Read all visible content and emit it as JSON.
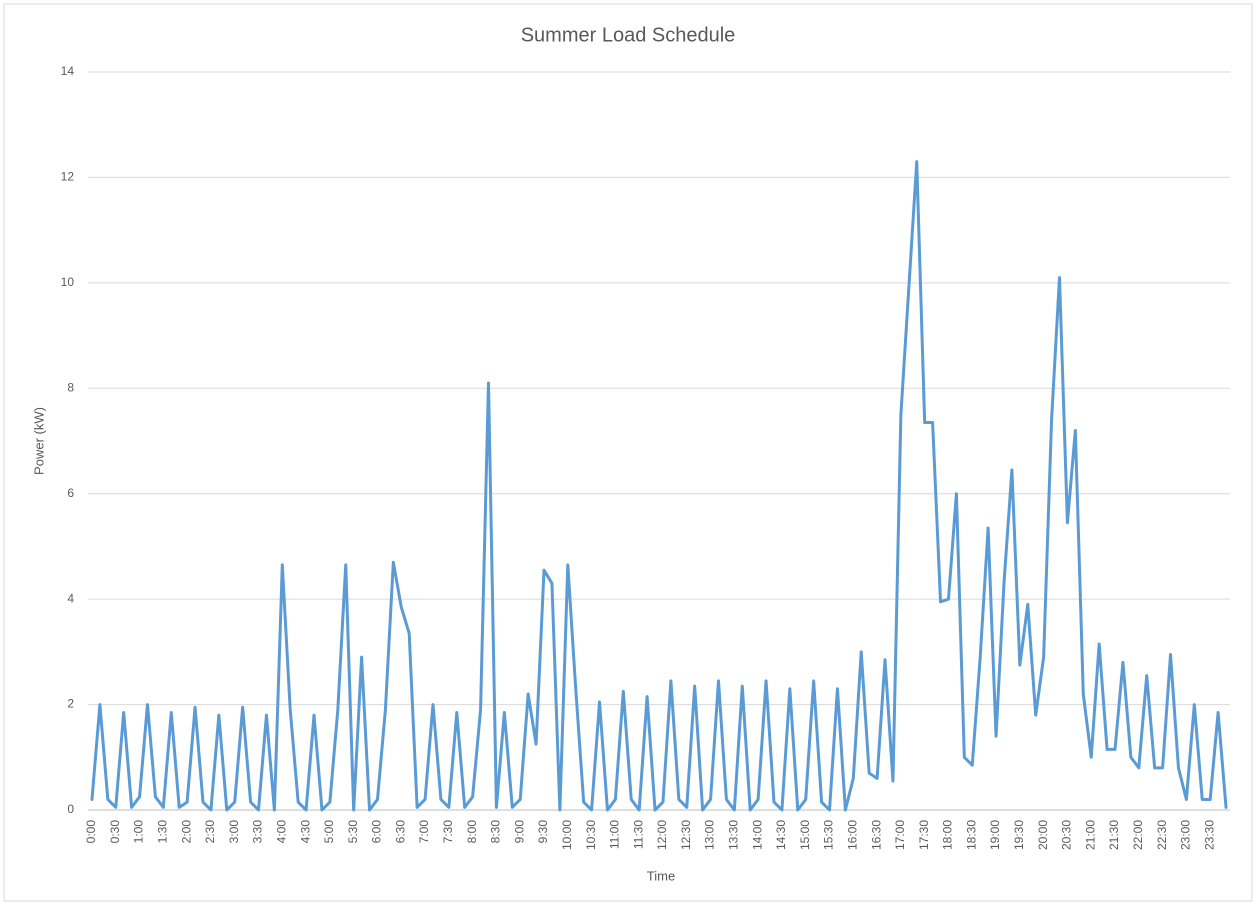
{
  "chart_data": {
    "type": "line",
    "title": "Summer Load Schedule",
    "xlabel": "Time",
    "ylabel": "Power (kW)",
    "categories": [
      "0:00",
      null,
      null,
      "0:30",
      null,
      null,
      "1:00",
      null,
      null,
      "1:30",
      null,
      null,
      "2:00",
      null,
      null,
      "2:30",
      null,
      null,
      "3:00",
      null,
      null,
      "3:30",
      null,
      null,
      "4:00",
      null,
      null,
      "4:30",
      null,
      null,
      "5:00",
      null,
      null,
      "5:30",
      null,
      null,
      "6:00",
      null,
      null,
      "6:30",
      null,
      null,
      "7:00",
      null,
      null,
      "7:30",
      null,
      null,
      "8:00",
      null,
      null,
      "8:30",
      null,
      null,
      "9:00",
      null,
      null,
      "9:30",
      null,
      null,
      "10:00",
      null,
      null,
      "10:30",
      null,
      null,
      "11:00",
      null,
      null,
      "11:30",
      null,
      null,
      "12:00",
      null,
      null,
      "12:30",
      null,
      null,
      "13:00",
      null,
      null,
      "13:30",
      null,
      null,
      "14:00",
      null,
      null,
      "14:30",
      null,
      null,
      "15:00",
      null,
      null,
      "15:30",
      null,
      null,
      "16:00",
      null,
      null,
      "16:30",
      null,
      null,
      "17:00",
      null,
      null,
      "17:30",
      null,
      null,
      "18:00",
      null,
      null,
      "18:30",
      null,
      null,
      "19:00",
      null,
      null,
      "19:30",
      null,
      null,
      "20:00",
      null,
      null,
      "20:30",
      null,
      null,
      "21:00",
      null,
      null,
      "21:30",
      null,
      null,
      "22:00",
      null,
      null,
      "22:30",
      null,
      null,
      "23:00",
      null,
      null,
      "23:30",
      null,
      null
    ],
    "series": [
      {
        "name": "Power",
        "color": "#5b9bd5",
        "values": [
          0.2,
          2.0,
          0.2,
          0.05,
          1.85,
          0.05,
          0.25,
          2.0,
          0.25,
          0.05,
          1.85,
          0.05,
          0.15,
          1.95,
          0.15,
          0.0,
          1.8,
          0.0,
          0.15,
          1.95,
          0.15,
          0.0,
          1.8,
          0.0,
          4.65,
          1.9,
          0.15,
          0.0,
          1.8,
          0.0,
          0.15,
          1.9,
          4.65,
          0.0,
          2.9,
          0.0,
          0.2,
          1.9,
          4.7,
          3.85,
          3.35,
          0.05,
          0.2,
          2.0,
          0.2,
          0.05,
          1.85,
          0.05,
          0.25,
          1.9,
          8.1,
          0.05,
          1.85,
          0.05,
          0.2,
          2.2,
          1.25,
          4.55,
          4.3,
          0.0,
          4.65,
          2.3,
          0.15,
          0.0,
          2.05,
          0.0,
          0.2,
          2.25,
          0.2,
          0.0,
          2.15,
          0.0,
          0.15,
          2.45,
          0.2,
          0.05,
          2.35,
          0.0,
          0.2,
          2.45,
          0.2,
          0.0,
          2.35,
          0.0,
          0.2,
          2.45,
          0.15,
          0.0,
          2.3,
          0.0,
          0.2,
          2.45,
          0.15,
          0.0,
          2.3,
          0.0,
          0.6,
          3.0,
          0.7,
          0.6,
          2.85,
          0.55,
          7.5,
          9.9,
          12.3,
          7.35,
          7.35,
          3.95,
          4.0,
          6.0,
          1.0,
          0.85,
          2.9,
          5.35,
          1.4,
          4.3,
          6.45,
          2.75,
          3.9,
          1.8,
          2.9,
          7.4,
          10.1,
          5.45,
          7.2,
          2.2,
          1.0,
          3.15,
          1.15,
          1.15,
          2.8,
          1.0,
          0.8,
          2.55,
          0.8,
          0.8,
          2.95,
          0.8,
          0.2,
          2.0,
          0.2,
          0.2,
          1.85,
          0.05
        ]
      }
    ],
    "ylim": [
      0,
      14
    ],
    "yticks": [
      0,
      2,
      4,
      6,
      8,
      10,
      12,
      14
    ],
    "grid": true
  }
}
